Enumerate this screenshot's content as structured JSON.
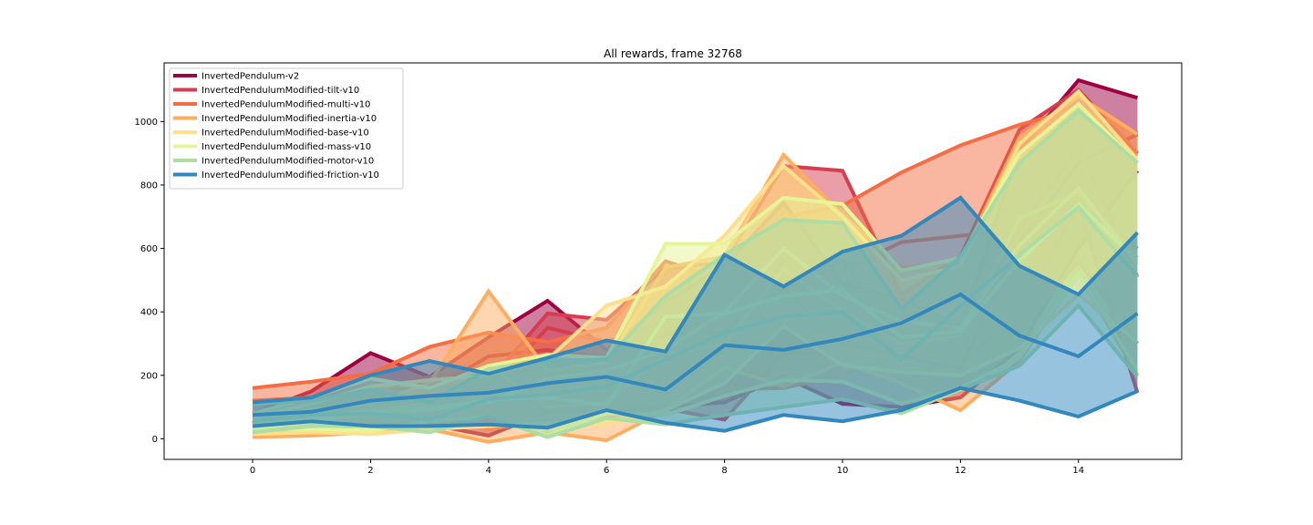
{
  "chart_data": {
    "type": "line",
    "title": "All rewards, frame 32768",
    "xlabel": "",
    "ylabel": "",
    "x": [
      0,
      1,
      2,
      3,
      4,
      5,
      6,
      7,
      8,
      9,
      10,
      11,
      12,
      13,
      14,
      15
    ],
    "xlim": [
      -1.5,
      15.75
    ],
    "ylim": [
      -65,
      1185
    ],
    "xticks": [
      0,
      2,
      4,
      6,
      8,
      10,
      12,
      14
    ],
    "yticks": [
      0,
      200,
      400,
      600,
      800,
      1000
    ],
    "legend_position": "top-left",
    "series": [
      {
        "name": "InvertedPendulum-v2",
        "color": "#9e0142",
        "lines": [
          [
            80,
            150,
            270,
            195,
            320,
            435,
            280,
            430,
            545,
            745,
            490,
            440,
            360,
            910,
            1130,
            1075
          ],
          [
            50,
            110,
            165,
            150,
            260,
            280,
            255,
            330,
            340,
            475,
            300,
            260,
            220,
            620,
            870,
            960
          ],
          [
            10,
            20,
            50,
            45,
            10,
            85,
            90,
            100,
            115,
            195,
            110,
            100,
            130,
            285,
            600,
            845
          ]
        ]
      },
      {
        "name": "InvertedPendulumModified-tilt-v10",
        "color": "#d53e4f",
        "lines": [
          [
            120,
            125,
            140,
            155,
            180,
            395,
            375,
            540,
            555,
            860,
            845,
            455,
            575,
            975,
            1100,
            900
          ],
          [
            70,
            80,
            100,
            110,
            150,
            350,
            305,
            370,
            290,
            565,
            560,
            320,
            375,
            660,
            920,
            510
          ],
          [
            30,
            25,
            45,
            60,
            60,
            60,
            70,
            95,
            60,
            270,
            270,
            215,
            230,
            410,
            730,
            145
          ]
        ]
      },
      {
        "name": "InvertedPendulumModified-multi-v10",
        "color": "#f46d43",
        "lines": [
          [
            160,
            180,
            205,
            290,
            335,
            305,
            350,
            560,
            500,
            700,
            735,
            840,
            925,
            990,
            1040,
            965
          ],
          [
            120,
            130,
            150,
            195,
            220,
            200,
            240,
            355,
            360,
            455,
            530,
            620,
            640,
            660,
            760,
            600
          ],
          [
            75,
            60,
            100,
            110,
            30,
            60,
            80,
            140,
            155,
            160,
            200,
            295,
            330,
            335,
            560,
            300
          ]
        ]
      },
      {
        "name": "InvertedPendulumModified-inertia-v10",
        "color": "#fdae61",
        "lines": [
          [
            75,
            90,
            110,
            175,
            465,
            215,
            240,
            540,
            575,
            895,
            705,
            540,
            560,
            950,
            1080,
            960
          ],
          [
            30,
            55,
            90,
            110,
            230,
            100,
            115,
            265,
            300,
            535,
            400,
            300,
            325,
            695,
            775,
            570
          ],
          [
            5,
            10,
            20,
            30,
            -10,
            20,
            -5,
            90,
            225,
            165,
            240,
            175,
            90,
            245,
            520,
            200
          ]
        ]
      },
      {
        "name": "InvertedPendulumModified-base-v10",
        "color": "#fee08b",
        "lines": [
          [
            70,
            110,
            165,
            185,
            200,
            250,
            420,
            480,
            640,
            860,
            700,
            500,
            545,
            930,
            1095,
            880
          ],
          [
            30,
            55,
            80,
            100,
            115,
            190,
            215,
            280,
            400,
            600,
            450,
            370,
            350,
            610,
            790,
            550
          ],
          [
            15,
            20,
            15,
            30,
            40,
            50,
            45,
            90,
            175,
            355,
            230,
            210,
            200,
            285,
            455,
            305
          ]
        ]
      },
      {
        "name": "InvertedPendulumModified-mass-v10",
        "color": "#e6f598",
        "lines": [
          [
            80,
            130,
            190,
            160,
            230,
            265,
            255,
            615,
            615,
            760,
            740,
            530,
            570,
            900,
            1055,
            870
          ],
          [
            50,
            65,
            85,
            90,
            125,
            130,
            105,
            385,
            395,
            450,
            470,
            320,
            340,
            560,
            740,
            560
          ],
          [
            30,
            30,
            25,
            55,
            70,
            10,
            80,
            75,
            135,
            185,
            180,
            110,
            160,
            255,
            520,
            215
          ]
        ]
      },
      {
        "name": "InvertedPendulumModified-motor-v10",
        "color": "#abdda4",
        "lines": [
          [
            110,
            120,
            155,
            115,
            220,
            245,
            250,
            450,
            580,
            690,
            680,
            410,
            575,
            870,
            1035,
            870
          ],
          [
            55,
            75,
            80,
            60,
            125,
            140,
            165,
            250,
            335,
            385,
            400,
            250,
            420,
            580,
            730,
            510
          ],
          [
            20,
            40,
            40,
            20,
            70,
            5,
            65,
            45,
            75,
            100,
            125,
            80,
            155,
            230,
            420,
            195
          ]
        ]
      },
      {
        "name": "InvertedPendulumModified-friction-v10",
        "color": "#3288bd",
        "lines": [
          [
            115,
            130,
            200,
            245,
            205,
            255,
            310,
            275,
            580,
            480,
            590,
            640,
            760,
            545,
            455,
            650
          ],
          [
            75,
            85,
            120,
            135,
            145,
            175,
            195,
            155,
            295,
            280,
            315,
            365,
            455,
            325,
            260,
            395
          ],
          [
            40,
            55,
            40,
            40,
            45,
            35,
            90,
            50,
            25,
            75,
            55,
            90,
            160,
            120,
            70,
            150
          ]
        ]
      }
    ]
  }
}
